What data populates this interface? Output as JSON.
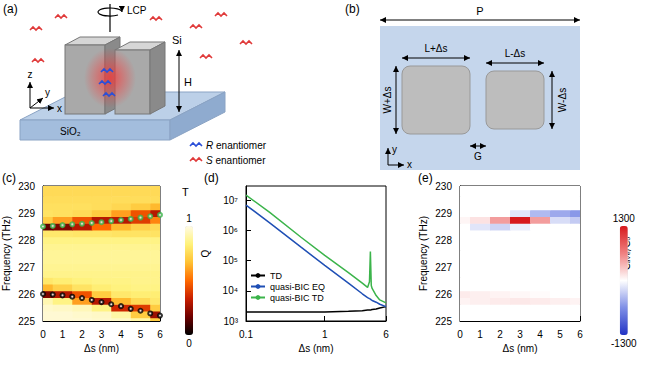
{
  "schematics": [
    {
      "panel": "(a)",
      "light": "LCP",
      "axes": [
        "x",
        "y",
        "z"
      ],
      "pillar": "Si",
      "substrate": "SiO₂",
      "height": "H",
      "molecules": [
        {
          "label": "R enantiomer",
          "color": "#2b4fd8"
        },
        {
          "label": "S enantiomer",
          "color": "#e03a3a"
        }
      ]
    },
    {
      "panel": "(b)",
      "period": "P",
      "lengths": [
        "L+Δs",
        "L-Δs"
      ],
      "widths": [
        "W+Δs",
        "W-Δs"
      ],
      "gap": "G",
      "axes": [
        "x",
        "y"
      ]
    }
  ],
  "chart_data": [
    {
      "panel": "(c)",
      "type": "heatmap",
      "x_label": "Δs (nm)",
      "y_label": "Frequency (THz)",
      "xlim": [
        0,
        6
      ],
      "xticks": [
        0,
        1,
        2,
        3,
        4,
        5,
        6
      ],
      "ylim": [
        225,
        230
      ],
      "yticks": [
        225,
        226,
        227,
        228,
        229,
        230
      ],
      "grid": false,
      "heatmap": {
        "x": [
          0,
          1,
          2,
          3,
          4,
          5,
          6
        ],
        "y": [
          225,
          225.25,
          225.5,
          225.75,
          226,
          226.25,
          226.5,
          226.75,
          227,
          227.25,
          227.5,
          227.75,
          228,
          228.25,
          228.5,
          228.75,
          229,
          229.25,
          229.5,
          229.75,
          230
        ],
        "values": [
          [
            0.97,
            0.97,
            0.97,
            0.96,
            0.95,
            0.9,
            0.7
          ],
          [
            0.97,
            0.97,
            0.96,
            0.95,
            0.9,
            0.7,
            0.25
          ],
          [
            0.96,
            0.95,
            0.93,
            0.85,
            0.35,
            0.4,
            0.7
          ],
          [
            0.92,
            0.85,
            0.6,
            0.3,
            0.65,
            0.75,
            0.8
          ],
          [
            0.2,
            0.3,
            0.45,
            0.7,
            0.8,
            0.82,
            0.82
          ],
          [
            0.65,
            0.72,
            0.78,
            0.82,
            0.84,
            0.85,
            0.85
          ],
          [
            0.8,
            0.82,
            0.84,
            0.85,
            0.85,
            0.86,
            0.86
          ],
          [
            0.86,
            0.86,
            0.86,
            0.86,
            0.86,
            0.86,
            0.86
          ],
          [
            0.87,
            0.87,
            0.87,
            0.87,
            0.87,
            0.87,
            0.87
          ],
          [
            0.88,
            0.88,
            0.88,
            0.88,
            0.88,
            0.88,
            0.88
          ],
          [
            0.88,
            0.88,
            0.88,
            0.88,
            0.88,
            0.88,
            0.88
          ],
          [
            0.87,
            0.87,
            0.87,
            0.87,
            0.87,
            0.87,
            0.87
          ],
          [
            0.85,
            0.85,
            0.85,
            0.85,
            0.85,
            0.85,
            0.85
          ],
          [
            0.8,
            0.8,
            0.79,
            0.79,
            0.78,
            0.78,
            0.78
          ],
          [
            0.15,
            0.2,
            0.3,
            0.5,
            0.65,
            0.72,
            0.75
          ],
          [
            0.7,
            0.6,
            0.45,
            0.3,
            0.3,
            0.4,
            0.55
          ],
          [
            0.78,
            0.77,
            0.75,
            0.7,
            0.6,
            0.45,
            0.3
          ],
          [
            0.77,
            0.77,
            0.77,
            0.76,
            0.74,
            0.7,
            0.65
          ],
          [
            0.76,
            0.76,
            0.76,
            0.76,
            0.76,
            0.76,
            0.76
          ],
          [
            0.75,
            0.75,
            0.75,
            0.75,
            0.75,
            0.75,
            0.75
          ],
          [
            0.75,
            0.75,
            0.75,
            0.75,
            0.75,
            0.75,
            0.75
          ]
        ]
      },
      "colorbar": {
        "title": "T",
        "range": [
          0,
          1
        ],
        "ticks": [
          0,
          1
        ]
      },
      "series": [
        {
          "type": "scatter",
          "marker": "open_circle",
          "color": "#000000",
          "x": [
            0,
            0.5,
            1,
            1.5,
            2,
            2.5,
            3,
            3.5,
            4,
            4.5,
            5,
            5.5,
            6
          ],
          "values": [
            226,
            225.98,
            225.95,
            225.9,
            225.85,
            225.78,
            225.7,
            225.62,
            225.55,
            225.45,
            225.38,
            225.28,
            225.2
          ]
        },
        {
          "type": "scatter",
          "marker": "open_circle",
          "color": "#3cb44b",
          "x": [
            0,
            0.5,
            1,
            1.5,
            2,
            2.5,
            3,
            3.5,
            4,
            4.5,
            5,
            5.5,
            6
          ],
          "values": [
            228.5,
            228.52,
            228.55,
            228.58,
            228.6,
            228.63,
            228.66,
            228.7,
            228.74,
            228.78,
            228.83,
            228.88,
            228.93
          ]
        }
      ]
    },
    {
      "panel": "(d)",
      "type": "line",
      "log": true,
      "x_label": "Δs (nm)",
      "y_label": "Q",
      "xlim": [
        0.1,
        6
      ],
      "xticks": [
        0.1,
        1,
        6
      ],
      "ylim": [
        1000,
        30000000
      ],
      "yticks": [
        {
          "value": 1000,
          "label": "10³"
        },
        {
          "value": 10000,
          "label": "10⁴"
        },
        {
          "value": 100000,
          "label": "10⁵"
        },
        {
          "value": 1000000,
          "label": "10⁶"
        },
        {
          "value": 10000000,
          "label": "10⁷"
        }
      ],
      "grid": false,
      "legend": "lower left",
      "x": [
        0.1,
        0.2,
        0.5,
        1,
        2,
        3,
        3.5,
        3.7,
        3.8,
        3.9,
        4,
        4.5,
        5,
        6
      ],
      "series": [
        {
          "name": "TD",
          "color": "#000000",
          "line_style": "solid",
          "values": [
            2000,
            2000,
            2000,
            2000,
            2100,
            2200,
            2300,
            2300,
            2300,
            2350,
            2400,
            2500,
            2700,
            3000
          ]
        },
        {
          "name": "quasi-BIC EQ",
          "color": "#1f4fb5",
          "line_style": "solid",
          "values": [
            7000000,
            1800000,
            280000,
            70000,
            18000,
            8000,
            6000,
            5500,
            5300,
            5000,
            4800,
            4200,
            3600,
            3000
          ]
        },
        {
          "name": "quasi-BIC TD",
          "color": "#3cb44b",
          "line_style": "solid",
          "values": [
            15000000,
            4000000,
            600000,
            150000,
            40000,
            18000,
            13000,
            20000,
            200000,
            15000,
            12000,
            7000,
            5000,
            4000
          ]
        }
      ]
    },
    {
      "panel": "(e)",
      "type": "heatmap",
      "x_label": "Δs (nm)",
      "y_label": "Frequency (THz)",
      "xlim": [
        0,
        6
      ],
      "xticks": [
        0,
        1,
        2,
        3,
        4,
        5,
        6
      ],
      "ylim": [
        225,
        230
      ],
      "yticks": [
        225,
        226,
        227,
        228,
        229,
        230
      ],
      "grid": false,
      "heatmap": {
        "x": [
          0,
          1,
          2,
          3,
          4,
          5,
          6
        ],
        "y": [
          225,
          225.25,
          225.5,
          225.75,
          226,
          226.25,
          226.5,
          226.75,
          227,
          227.25,
          227.5,
          227.75,
          228,
          228.25,
          228.5,
          228.75,
          229,
          229.25,
          229.5,
          229.75,
          230
        ],
        "values": [
          [
            0,
            0,
            0,
            0,
            0,
            0,
            0
          ],
          [
            0,
            0,
            0,
            0,
            0,
            0,
            0
          ],
          [
            0,
            0,
            0,
            0,
            0,
            0,
            0
          ],
          [
            60,
            80,
            100,
            120,
            100,
            80,
            60
          ],
          [
            100,
            80,
            60,
            40,
            20,
            0,
            0
          ],
          [
            0,
            0,
            0,
            0,
            0,
            0,
            0
          ],
          [
            0,
            0,
            0,
            0,
            0,
            0,
            0
          ],
          [
            0,
            0,
            0,
            0,
            0,
            0,
            0
          ],
          [
            0,
            0,
            0,
            0,
            0,
            0,
            0
          ],
          [
            0,
            0,
            0,
            0,
            0,
            0,
            0
          ],
          [
            0,
            0,
            0,
            0,
            0,
            0,
            0
          ],
          [
            0,
            0,
            0,
            0,
            0,
            0,
            0
          ],
          [
            0,
            0,
            0,
            0,
            0,
            0,
            0
          ],
          [
            0,
            0,
            0,
            0,
            0,
            0,
            0
          ],
          [
            0,
            -150,
            -250,
            -100,
            0,
            0,
            0
          ],
          [
            50,
            150,
            500,
            1300,
            500,
            -200,
            -300
          ],
          [
            0,
            0,
            0,
            -150,
            -400,
            -500,
            -600
          ],
          [
            0,
            0,
            0,
            0,
            0,
            0,
            0
          ],
          [
            0,
            0,
            0,
            0,
            0,
            0,
            0
          ],
          [
            0,
            0,
            0,
            0,
            0,
            0,
            0
          ],
          [
            0,
            0,
            0,
            0,
            0,
            0,
            0
          ]
        ]
      },
      "colorbar": {
        "title": "Cₐᵥₑ/C₀",
        "range": [
          -1300,
          1300
        ],
        "ticks": [
          -1300,
          1300
        ]
      }
    }
  ]
}
